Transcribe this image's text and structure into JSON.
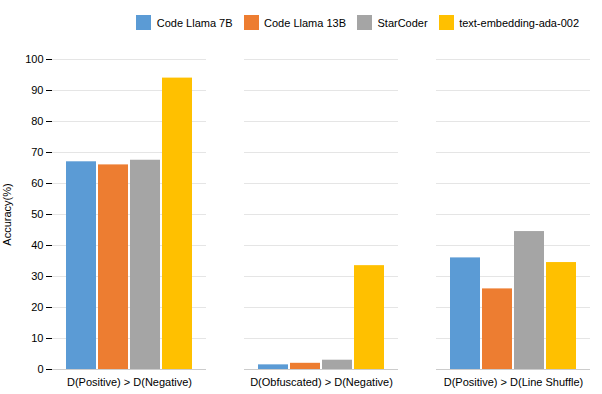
{
  "chart_data": {
    "type": "bar",
    "categories": [
      "D(Positive) > D(Negative)",
      "D(Obfuscated) > D(Negative)",
      "D(Positive) > D(Line Shuffle)"
    ],
    "series": [
      {
        "name": "Code Llama 7B",
        "color": "#5B9BD5",
        "values": [
          67,
          1.5,
          36
        ]
      },
      {
        "name": "Code Llama 13B",
        "color": "#ED7D31",
        "values": [
          66,
          2.0,
          26
        ]
      },
      {
        "name": "StarCoder",
        "color": "#A5A5A5",
        "values": [
          67.5,
          3.0,
          44.5
        ]
      },
      {
        "name": "text-embedding-ada-002",
        "color": "#FFC000",
        "values": [
          94,
          33.5,
          34.5
        ]
      }
    ],
    "ylabel": "Accuracy(%)",
    "ylim": [
      0,
      100
    ],
    "yticks": [
      0,
      10,
      20,
      30,
      40,
      50,
      60,
      70,
      80,
      90,
      100
    ],
    "grid": true,
    "legend": "upper right"
  }
}
